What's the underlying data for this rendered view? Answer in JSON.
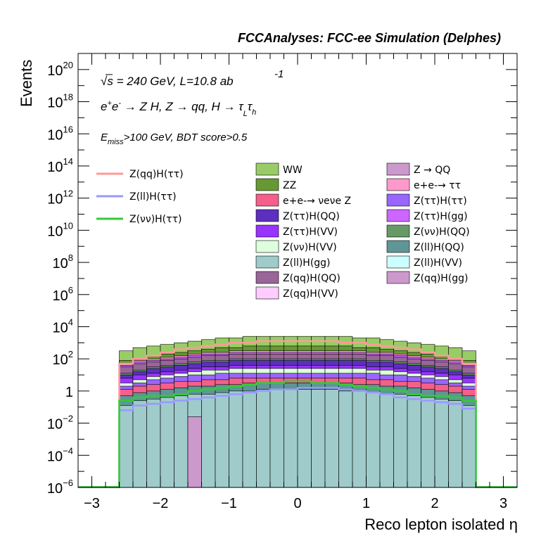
{
  "chart_data": {
    "type": "histogram-stacked-log",
    "title": "FCCAnalyses: FCC-ee Simulation (Delphes)",
    "xlabel": "Reco lepton isolated η",
    "ylabel": "Events",
    "xlim": [
      -3.2,
      3.2
    ],
    "ylim_log10": [
      -6,
      21
    ],
    "yscale": "log",
    "x_ticks": [
      {
        "v": -3,
        "label": "−3"
      },
      {
        "v": -2,
        "label": "−2"
      },
      {
        "v": -1,
        "label": "−1"
      },
      {
        "v": 0,
        "label": "0"
      },
      {
        "v": 1,
        "label": "1"
      },
      {
        "v": 2,
        "label": "2"
      },
      {
        "v": 3,
        "label": "3"
      }
    ],
    "y_ticks": [
      {
        "e": -6,
        "base": "10",
        "exp": "−6"
      },
      {
        "e": -4,
        "base": "10",
        "exp": "−4"
      },
      {
        "e": -2,
        "base": "10",
        "exp": "−2"
      },
      {
        "e": 0,
        "base": "1",
        "exp": ""
      },
      {
        "e": 2,
        "base": "10",
        "exp": "2"
      },
      {
        "e": 4,
        "base": "10",
        "exp": "4"
      },
      {
        "e": 6,
        "base": "10",
        "exp": "6"
      },
      {
        "e": 8,
        "base": "10",
        "exp": "8"
      },
      {
        "e": 10,
        "base": "10",
        "exp": "10"
      },
      {
        "e": 12,
        "base": "10",
        "exp": "12"
      },
      {
        "e": 14,
        "base": "10",
        "exp": "14"
      },
      {
        "e": 16,
        "base": "10",
        "exp": "16"
      },
      {
        "e": 18,
        "base": "10",
        "exp": "18"
      },
      {
        "e": 20,
        "base": "10",
        "exp": "20"
      }
    ],
    "annotations": {
      "line1_sqrt": "√",
      "line1_s": "s",
      "line1_rest": " = 240 GeV, L=10.8 ab",
      "line1_exp": "-1",
      "line2_e": "e",
      "line2_plus": "+",
      "line2_e2": "e",
      "line2_minus": "-",
      "line2_a": " → Z H, Z  → qq, H  → τ",
      "line2_L": "L",
      "line2_tau": "τ",
      "line2_h": "h",
      "line3_E": "E",
      "line3_miss": "miss",
      "line3_rest": ">100 GeV, BDT score>0.5"
    },
    "bin_centers": [
      -2.5,
      -2.3,
      -2.1,
      -1.9,
      -1.7,
      -1.5,
      -1.3,
      -1.1,
      -0.9,
      -0.7,
      -0.5,
      -0.3,
      -0.1,
      0.1,
      0.3,
      0.5,
      0.7,
      0.9,
      1.1,
      1.3,
      1.5,
      1.7,
      1.9,
      2.1,
      2.3,
      2.5
    ],
    "x_edges": [
      -2.6,
      -2.4,
      -2.2,
      -2.0,
      -1.8,
      -1.6,
      -1.4,
      -1.2,
      -1.0,
      -0.8,
      -0.6,
      -0.4,
      -0.2,
      0.0,
      0.2,
      0.4,
      0.6,
      0.8,
      1.0,
      1.2,
      1.4,
      1.6,
      1.8,
      2.0,
      2.2,
      2.4,
      2.6
    ],
    "stacked_cumulative_log10": [
      {
        "name": "Z(ll)H(gg)",
        "color": "#9fcbcb",
        "values": [
          -0.9,
          -0.6,
          -0.5,
          -0.4,
          -0.3,
          -0.2,
          -0.2,
          -0.1,
          0.0,
          0.0,
          0.1,
          0.1,
          0.1,
          0.1,
          0.1,
          0.1,
          0.0,
          0.0,
          -0.1,
          -0.2,
          -0.2,
          -0.3,
          -0.4,
          -0.5,
          -0.6,
          -0.9
        ]
      },
      {
        "name": "Z(ll)H(QQ)",
        "color": "#5e9696",
        "values": [
          -0.3,
          -0.1,
          0.0,
          0.1,
          0.2,
          0.3,
          0.3,
          0.4,
          0.4,
          0.5,
          0.5,
          0.5,
          0.5,
          0.5,
          0.5,
          0.5,
          0.5,
          0.4,
          0.4,
          0.3,
          0.3,
          0.2,
          0.1,
          0.0,
          -0.1,
          -0.3
        ]
      },
      {
        "name": "e+e- → νeνe Z",
        "color": "#f4608a",
        "values": [
          0.1,
          0.3,
          0.4,
          0.5,
          0.6,
          0.6,
          0.7,
          0.7,
          0.8,
          0.8,
          0.8,
          0.8,
          0.8,
          0.8,
          0.8,
          0.8,
          0.8,
          0.8,
          0.7,
          0.7,
          0.6,
          0.6,
          0.5,
          0.4,
          0.3,
          0.1
        ]
      },
      {
        "name": "Z(ττ)H(ττ)",
        "color": "#9966ff",
        "values": [
          0.3,
          0.5,
          0.7,
          0.8,
          0.9,
          1.0,
          1.0,
          1.1,
          1.1,
          1.1,
          1.1,
          1.1,
          1.1,
          1.1,
          1.1,
          1.1,
          1.1,
          1.1,
          1.1,
          1.0,
          1.0,
          0.9,
          0.8,
          0.7,
          0.5,
          0.3
        ]
      },
      {
        "name": "Z(νν)H(VV)",
        "color": "#ddffdd",
        "values": [
          0.5,
          0.7,
          0.9,
          1.0,
          1.1,
          1.2,
          1.3,
          1.3,
          1.4,
          1.4,
          1.4,
          1.4,
          1.4,
          1.4,
          1.4,
          1.4,
          1.4,
          1.4,
          1.3,
          1.3,
          1.2,
          1.1,
          1.0,
          0.9,
          0.7,
          0.5
        ]
      },
      {
        "name": "Z(ττ)H(VV)",
        "color": "#9933ff",
        "values": [
          0.8,
          1.0,
          1.1,
          1.2,
          1.3,
          1.4,
          1.5,
          1.5,
          1.6,
          1.6,
          1.6,
          1.6,
          1.6,
          1.6,
          1.6,
          1.6,
          1.6,
          1.6,
          1.5,
          1.5,
          1.4,
          1.3,
          1.2,
          1.1,
          1.0,
          0.8
        ]
      },
      {
        "name": "Z(ττ)H(QQ)",
        "color": "#5d2fbf",
        "values": [
          1.0,
          1.2,
          1.4,
          1.5,
          1.6,
          1.7,
          1.8,
          1.8,
          1.9,
          1.9,
          1.9,
          1.9,
          1.9,
          1.9,
          1.9,
          1.9,
          1.9,
          1.9,
          1.8,
          1.8,
          1.7,
          1.6,
          1.5,
          1.4,
          1.2,
          1.0
        ]
      },
      {
        "name": "Z(νν)H(QQ)",
        "color": "#669966",
        "values": [
          1.1,
          1.3,
          1.5,
          1.6,
          1.7,
          1.8,
          1.9,
          1.9,
          2.0,
          2.0,
          2.0,
          2.0,
          2.0,
          2.0,
          2.0,
          2.0,
          2.0,
          2.0,
          1.9,
          1.9,
          1.8,
          1.7,
          1.6,
          1.5,
          1.3,
          1.1
        ]
      },
      {
        "name": "Z(qq)H(QQ)",
        "color": "#996699",
        "values": [
          1.5,
          1.7,
          1.8,
          1.9,
          2.0,
          2.1,
          2.2,
          2.2,
          2.3,
          2.3,
          2.3,
          2.3,
          2.3,
          2.3,
          2.3,
          2.3,
          2.3,
          2.3,
          2.2,
          2.2,
          2.1,
          2.0,
          1.9,
          1.8,
          1.7,
          1.5
        ]
      },
      {
        "name": "Z(ττ)H(gg)",
        "color": "#cc66ff",
        "values": [
          1.6,
          1.8,
          1.9,
          2.0,
          2.1,
          2.2,
          2.3,
          2.3,
          2.4,
          2.4,
          2.4,
          2.4,
          2.4,
          2.4,
          2.4,
          2.4,
          2.4,
          2.4,
          2.3,
          2.3,
          2.2,
          2.1,
          2.0,
          1.9,
          1.8,
          1.6
        ]
      },
      {
        "name": "e+e-→ ττ",
        "color": "#ff99cc",
        "values": [
          1.7,
          1.9,
          2.0,
          2.1,
          2.2,
          2.3,
          2.4,
          2.4,
          2.5,
          2.5,
          2.5,
          2.5,
          2.5,
          2.5,
          2.5,
          2.5,
          2.5,
          2.5,
          2.4,
          2.4,
          2.3,
          2.2,
          2.1,
          2.0,
          1.9,
          1.7
        ]
      },
      {
        "name": "ZZ",
        "color": "#669933",
        "values": [
          1.9,
          2.0,
          2.2,
          2.3,
          2.4,
          2.5,
          2.6,
          2.7,
          2.7,
          2.8,
          2.8,
          2.8,
          2.8,
          2.8,
          2.8,
          2.8,
          2.8,
          2.7,
          2.7,
          2.6,
          2.5,
          2.4,
          2.3,
          2.2,
          2.0,
          1.9
        ]
      },
      {
        "name": "WW",
        "color": "#99cc66",
        "values": [
          2.5,
          2.7,
          2.8,
          2.9,
          3.0,
          3.1,
          3.2,
          3.3,
          3.3,
          3.4,
          3.4,
          3.4,
          3.4,
          3.4,
          3.4,
          3.4,
          3.4,
          3.3,
          3.3,
          3.2,
          3.1,
          3.0,
          2.9,
          2.8,
          2.7,
          2.5
        ]
      }
    ],
    "isolated_spike": {
      "name": "Z → QQ",
      "color": "#cc99cc",
      "x": [
        -1.6,
        -1.4
      ],
      "log10": -1.6
    },
    "signal_lines": [
      {
        "name": "Z(qq)H(ττ)",
        "color": "#ff9999",
        "values": [
          1.7,
          2.0,
          2.2,
          2.4,
          2.6,
          2.7,
          2.8,
          2.9,
          3.0,
          3.0,
          3.1,
          3.1,
          3.1,
          3.1,
          3.1,
          3.1,
          3.0,
          3.0,
          2.9,
          2.8,
          2.7,
          2.6,
          2.4,
          2.2,
          2.0,
          1.7
        ]
      },
      {
        "name": "Z(ll)H(ττ)",
        "color": "#9999ff",
        "values": [
          -1.2,
          -0.9,
          -0.8,
          -0.7,
          -0.6,
          -0.5,
          -0.4,
          -0.3,
          -0.2,
          -0.1,
          0.0,
          0.1,
          0.1,
          0.2,
          0.2,
          0.2,
          0.1,
          0.0,
          -0.1,
          -0.2,
          -0.4,
          -0.5,
          -0.6,
          -0.7,
          -0.8,
          -1.1
        ]
      },
      {
        "name": "Z(νν)H(ττ)",
        "color": "#33cc33",
        "values": [
          -0.6,
          -0.4,
          -0.3,
          -0.3,
          -0.2,
          0.0,
          0.1,
          0.2,
          0.3,
          0.4,
          0.5,
          0.5,
          0.6,
          0.6,
          0.5,
          0.5,
          0.4,
          0.3,
          0.2,
          0.1,
          0.0,
          -0.2,
          -0.3,
          -0.3,
          -0.4,
          -0.6
        ]
      }
    ],
    "legend": {
      "lines": [
        {
          "label": "Z(qq)H(ττ)",
          "color": "#ff9999"
        },
        {
          "label": "Z(ll)H(ττ)",
          "color": "#9999ff"
        },
        {
          "label": "Z(νν)H(ττ)",
          "color": "#33cc33"
        }
      ],
      "col1": [
        {
          "label": "WW",
          "color": "#99cc66"
        },
        {
          "label": "ZZ",
          "color": "#669933"
        },
        {
          "label": "e+e-→ νeνe Z",
          "color": "#f4608a"
        },
        {
          "label": "Z(ττ)H(QQ)",
          "color": "#5d2fbf"
        },
        {
          "label": "Z(ττ)H(VV)",
          "color": "#9933ff"
        },
        {
          "label": "Z(νν)H(VV)",
          "color": "#ddffdd"
        },
        {
          "label": "Z(ll)H(gg)",
          "color": "#9fcbcb"
        },
        {
          "label": "Z(qq)H(QQ)",
          "color": "#996699"
        },
        {
          "label": "Z(qq)H(VV)",
          "color": "#ffccff"
        }
      ],
      "col2": [
        {
          "label": "Z → QQ",
          "color": "#cc99cc"
        },
        {
          "label": "e+e-→ ττ",
          "color": "#ff99cc"
        },
        {
          "label": "Z(ττ)H(ττ)",
          "color": "#9966ff"
        },
        {
          "label": "Z(ττ)H(gg)",
          "color": "#cc66ff"
        },
        {
          "label": "Z(νν)H(QQ)",
          "color": "#669966"
        },
        {
          "label": "Z(ll)H(QQ)",
          "color": "#5e9696"
        },
        {
          "label": "Z(ll)H(VV)",
          "color": "#ccffff"
        },
        {
          "label": "Z(qq)H(gg)",
          "color": "#cc99cc"
        }
      ]
    }
  }
}
